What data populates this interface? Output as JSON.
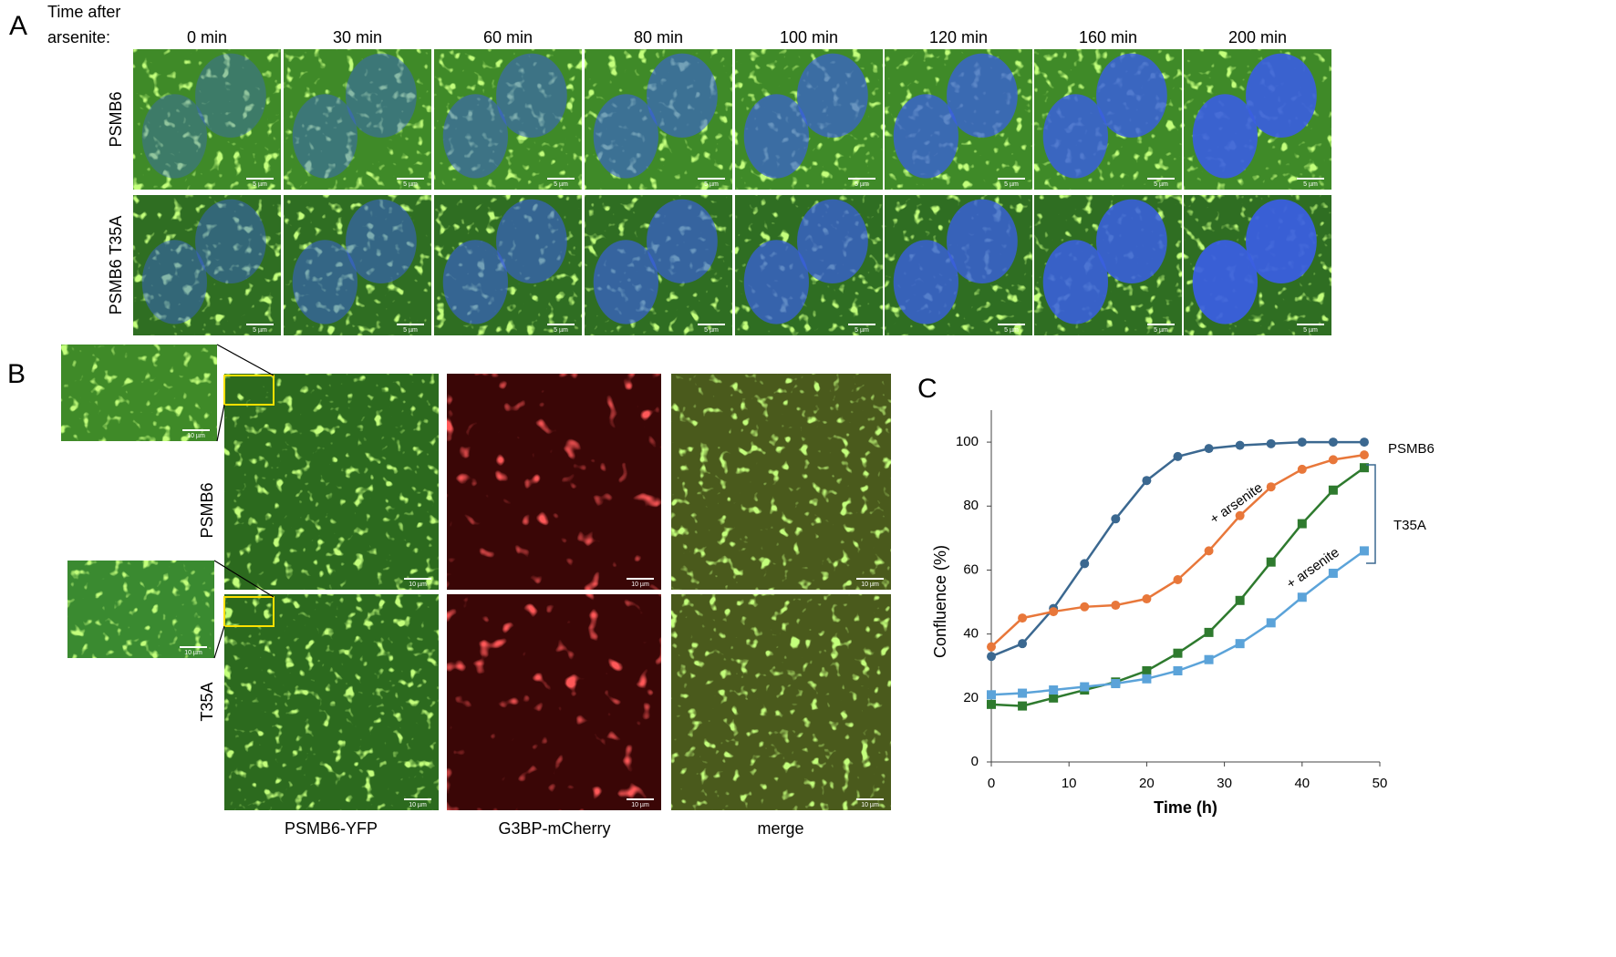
{
  "panel_a": {
    "label": "A",
    "heading_lines": [
      "Time after",
      "arsenite:"
    ],
    "time_points": [
      "0 min",
      "30 min",
      "60 min",
      "80 min",
      "100 min",
      "120 min",
      "160 min",
      "200 min"
    ],
    "rows": [
      "PSMB6",
      "PSMB6 T35A"
    ],
    "scale_label": "5 µm"
  },
  "panel_b": {
    "label": "B",
    "rows": [
      "PSMB6",
      "T35A"
    ],
    "columns": [
      "PSMB6-YFP",
      "G3BP-mCherry",
      "merge"
    ],
    "scale_label": "10 µm"
  },
  "panel_c": {
    "label": "C"
  },
  "chart_data": {
    "type": "line",
    "x_label": "Time (h)",
    "y_label": "Confluence (%)",
    "x": [
      0,
      4,
      8,
      12,
      16,
      20,
      24,
      28,
      32,
      36,
      40,
      44,
      48
    ],
    "series": [
      {
        "name": "PSMB6",
        "color": "#3b6890",
        "marker": "circle",
        "values": [
          33,
          37,
          48,
          62,
          76,
          88,
          95.5,
          98,
          99,
          99.5,
          100,
          100,
          100
        ]
      },
      {
        "name": "+ arsenite",
        "color": "#e8773a",
        "marker": "circle",
        "values": [
          36,
          45,
          47,
          48.5,
          49,
          51,
          57,
          66,
          77,
          86,
          91.5,
          94.5,
          96
        ]
      },
      {
        "name": "T35A",
        "color": "#2e7a2e",
        "marker": "square",
        "values": [
          18,
          17.5,
          20,
          22.5,
          25,
          28.5,
          34,
          40.5,
          50.5,
          62.5,
          74.5,
          85,
          92
        ]
      },
      {
        "name": "+ arsenite",
        "color": "#5ba3d9",
        "marker": "square",
        "values": [
          21,
          21.5,
          22.5,
          23.5,
          24.5,
          26,
          28.5,
          32,
          37,
          43.5,
          51.5,
          59,
          66
        ]
      }
    ],
    "xlim": [
      0,
      50
    ],
    "xticks": [
      0,
      10,
      20,
      30,
      40,
      50
    ],
    "ylim": [
      0,
      110
    ],
    "yticks": [
      0,
      20,
      40,
      60,
      80,
      100
    ],
    "grid": false
  }
}
